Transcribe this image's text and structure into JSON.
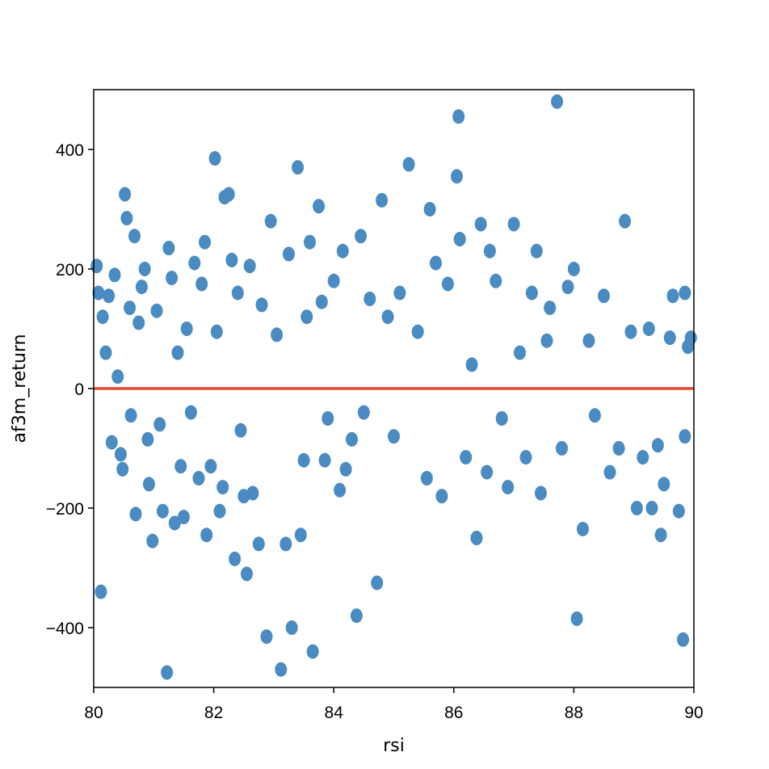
{
  "chart_data": {
    "type": "scatter",
    "xlabel": "rsi",
    "ylabel": "af3m_return",
    "xlim": [
      80,
      90
    ],
    "ylim": [
      -500,
      500
    ],
    "xticks": [
      80,
      82,
      84,
      86,
      88,
      90
    ],
    "yticks": [
      -400,
      -200,
      0,
      200,
      400
    ],
    "xtick_labels": [
      "80",
      "82",
      "84",
      "86",
      "88",
      "90"
    ],
    "ytick_labels": [
      "−400",
      "−200",
      "0",
      "200",
      "400"
    ],
    "grid": false,
    "legend": "none",
    "colors": {
      "points": "#4a8bc2",
      "reference_line": "#e24a33"
    },
    "reference_line": {
      "y": 0
    },
    "series": [
      {
        "points": [
          [
            80.05,
            205
          ],
          [
            80.08,
            160
          ],
          [
            80.12,
            -340
          ],
          [
            80.15,
            120
          ],
          [
            80.2,
            60
          ],
          [
            80.25,
            155
          ],
          [
            80.3,
            -90
          ],
          [
            80.35,
            190
          ],
          [
            80.4,
            20
          ],
          [
            80.45,
            -110
          ],
          [
            80.48,
            -135
          ],
          [
            80.52,
            325
          ],
          [
            80.55,
            285
          ],
          [
            80.6,
            135
          ],
          [
            80.62,
            -45
          ],
          [
            80.68,
            255
          ],
          [
            80.7,
            -210
          ],
          [
            80.75,
            110
          ],
          [
            80.8,
            170
          ],
          [
            80.85,
            200
          ],
          [
            80.9,
            -85
          ],
          [
            80.92,
            -160
          ],
          [
            80.98,
            -255
          ],
          [
            81.05,
            130
          ],
          [
            81.1,
            -60
          ],
          [
            81.15,
            -205
          ],
          [
            81.22,
            -475
          ],
          [
            81.25,
            235
          ],
          [
            81.3,
            185
          ],
          [
            81.35,
            -225
          ],
          [
            81.4,
            60
          ],
          [
            81.45,
            -130
          ],
          [
            81.5,
            -215
          ],
          [
            81.55,
            100
          ],
          [
            81.62,
            -40
          ],
          [
            81.68,
            210
          ],
          [
            81.75,
            -150
          ],
          [
            81.8,
            175
          ],
          [
            81.85,
            245
          ],
          [
            81.88,
            -245
          ],
          [
            81.95,
            -130
          ],
          [
            82.02,
            385
          ],
          [
            82.05,
            95
          ],
          [
            82.1,
            -205
          ],
          [
            82.15,
            -165
          ],
          [
            82.18,
            320
          ],
          [
            82.25,
            325
          ],
          [
            82.3,
            215
          ],
          [
            82.35,
            -285
          ],
          [
            82.4,
            160
          ],
          [
            82.45,
            -70
          ],
          [
            82.5,
            -180
          ],
          [
            82.55,
            -310
          ],
          [
            82.6,
            205
          ],
          [
            82.65,
            -175
          ],
          [
            82.75,
            -260
          ],
          [
            82.8,
            140
          ],
          [
            82.88,
            -415
          ],
          [
            82.95,
            280
          ],
          [
            83.05,
            90
          ],
          [
            83.12,
            -470
          ],
          [
            83.2,
            -260
          ],
          [
            83.25,
            225
          ],
          [
            83.3,
            -400
          ],
          [
            83.4,
            370
          ],
          [
            83.45,
            -245
          ],
          [
            83.5,
            -120
          ],
          [
            83.55,
            120
          ],
          [
            83.6,
            245
          ],
          [
            83.65,
            -440
          ],
          [
            83.75,
            305
          ],
          [
            83.8,
            145
          ],
          [
            83.85,
            -120
          ],
          [
            83.9,
            -50
          ],
          [
            84.0,
            180
          ],
          [
            84.1,
            -170
          ],
          [
            84.15,
            230
          ],
          [
            84.2,
            -135
          ],
          [
            84.3,
            -85
          ],
          [
            84.38,
            -380
          ],
          [
            84.45,
            255
          ],
          [
            84.5,
            -40
          ],
          [
            84.6,
            150
          ],
          [
            84.72,
            -325
          ],
          [
            84.8,
            315
          ],
          [
            84.9,
            120
          ],
          [
            85.0,
            -80
          ],
          [
            85.1,
            160
          ],
          [
            85.25,
            375
          ],
          [
            85.4,
            95
          ],
          [
            85.55,
            -150
          ],
          [
            85.6,
            300
          ],
          [
            85.7,
            210
          ],
          [
            85.8,
            -180
          ],
          [
            85.9,
            175
          ],
          [
            86.05,
            355
          ],
          [
            86.08,
            455
          ],
          [
            86.1,
            250
          ],
          [
            86.2,
            -115
          ],
          [
            86.3,
            40
          ],
          [
            86.38,
            -250
          ],
          [
            86.45,
            275
          ],
          [
            86.55,
            -140
          ],
          [
            86.6,
            230
          ],
          [
            86.7,
            180
          ],
          [
            86.8,
            -50
          ],
          [
            86.9,
            -165
          ],
          [
            87.0,
            275
          ],
          [
            87.1,
            60
          ],
          [
            87.2,
            -115
          ],
          [
            87.3,
            160
          ],
          [
            87.38,
            230
          ],
          [
            87.45,
            -175
          ],
          [
            87.55,
            80
          ],
          [
            87.6,
            135
          ],
          [
            87.72,
            480
          ],
          [
            87.8,
            -100
          ],
          [
            87.9,
            170
          ],
          [
            88.0,
            200
          ],
          [
            88.05,
            -385
          ],
          [
            88.15,
            -235
          ],
          [
            88.25,
            80
          ],
          [
            88.35,
            -45
          ],
          [
            88.5,
            155
          ],
          [
            88.6,
            -140
          ],
          [
            88.75,
            -100
          ],
          [
            88.85,
            280
          ],
          [
            88.95,
            95
          ],
          [
            89.05,
            -200
          ],
          [
            89.15,
            -115
          ],
          [
            89.25,
            100
          ],
          [
            89.3,
            -200
          ],
          [
            89.4,
            -95
          ],
          [
            89.45,
            -245
          ],
          [
            89.5,
            -160
          ],
          [
            89.6,
            85
          ],
          [
            89.65,
            155
          ],
          [
            89.75,
            -205
          ],
          [
            89.82,
            -420
          ],
          [
            89.85,
            160
          ],
          [
            89.9,
            70
          ],
          [
            89.95,
            85
          ],
          [
            89.85,
            -80
          ]
        ]
      }
    ]
  }
}
